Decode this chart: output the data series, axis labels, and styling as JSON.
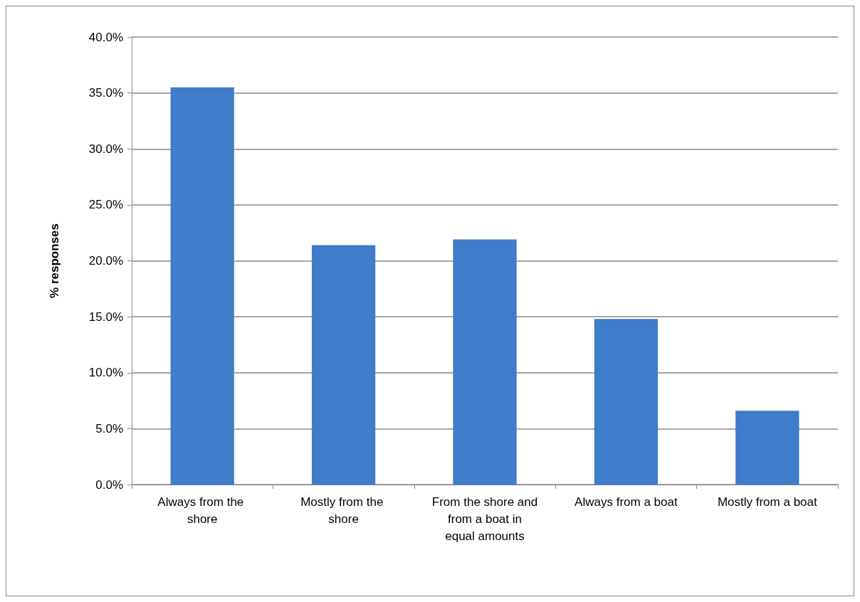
{
  "chart_data": {
    "type": "bar",
    "ylabel": "% responses",
    "categories": [
      "Always from the shore",
      "Mostly from the shore",
      "From the shore and from a boat in equal amounts",
      "Always from a boat",
      "Mostly from a boat"
    ],
    "values": [
      35.5,
      21.4,
      21.9,
      14.8,
      6.6
    ],
    "color": "#3f7cc9",
    "ylim": [
      0,
      40
    ],
    "yticks": [
      {
        "value": 0,
        "label": "0.0%"
      },
      {
        "value": 5,
        "label": "5.0%"
      },
      {
        "value": 10,
        "label": "10.0%"
      },
      {
        "value": 15,
        "label": "15.0%"
      },
      {
        "value": 20,
        "label": "20.0%"
      },
      {
        "value": 25,
        "label": "25.0%"
      },
      {
        "value": 30,
        "label": "30.0%"
      },
      {
        "value": 35,
        "label": "35.0%"
      },
      {
        "value": 40,
        "label": "40.0%"
      }
    ],
    "grid": "y"
  }
}
